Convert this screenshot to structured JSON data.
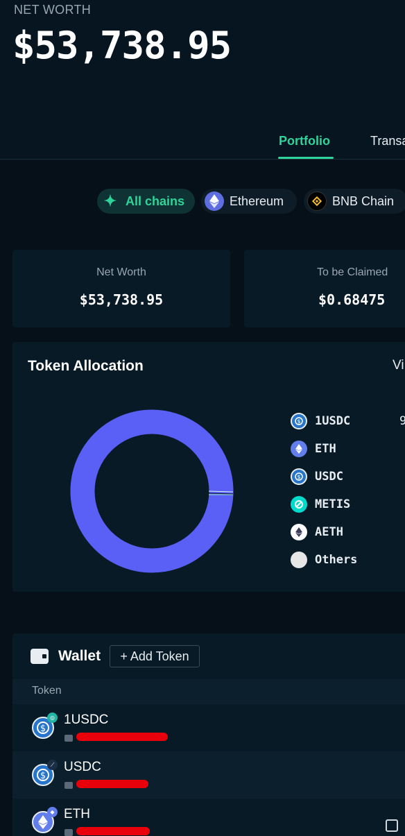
{
  "header": {
    "net_worth_label": "NET WORTH",
    "net_worth_value": "$53,738.95"
  },
  "tabs": [
    {
      "label": "Portfolio",
      "active": true
    },
    {
      "label": "Transa",
      "active": false
    }
  ],
  "chain_filters": [
    {
      "label": "All chains",
      "icon": "sparkle-icon",
      "active": true
    },
    {
      "label": "Ethereum",
      "icon": "ethereum-icon",
      "active": false
    },
    {
      "label": "BNB Chain",
      "icon": "bnb-icon",
      "active": false
    }
  ],
  "summary_cards": [
    {
      "label": "Net Worth",
      "value": "$53,738.95"
    },
    {
      "label": "To be Claimed",
      "value": "$0.68475"
    }
  ],
  "allocation": {
    "title": "Token Allocation",
    "view_link": "Vi",
    "first_pct_partial": "9",
    "legend": [
      {
        "name": "1USDC",
        "icon": "usdc-icon",
        "color": "#2775ca"
      },
      {
        "name": "ETH",
        "icon": "ethereum-icon",
        "color": "#627eea"
      },
      {
        "name": "USDC",
        "icon": "usdc-icon",
        "color": "#2775ca"
      },
      {
        "name": "METIS",
        "icon": "metis-icon",
        "color": "#00dacc"
      },
      {
        "name": "AETH",
        "icon": "aeth-icon",
        "color": "#ffffff"
      },
      {
        "name": "Others",
        "icon": "others-icon",
        "color": "#e6e6e6"
      }
    ],
    "donut_color": "#5a5ff6"
  },
  "wallet": {
    "title": "Wallet",
    "add_token_label": "+ Add Token",
    "column_header": "Token",
    "tokens": [
      {
        "name": "1USDC",
        "icon": "usdc-icon",
        "badge": "chain-badge-icon"
      },
      {
        "name": "USDC",
        "icon": "usdc-icon",
        "badge": "chain-badge-icon"
      },
      {
        "name": "ETH",
        "icon": "ethereum-icon",
        "badge": "ethereum-badge-icon"
      }
    ]
  },
  "colors": {
    "accent": "#2fd49a",
    "background": "#061018",
    "card": "#081a25",
    "redaction": "#e8000b"
  }
}
